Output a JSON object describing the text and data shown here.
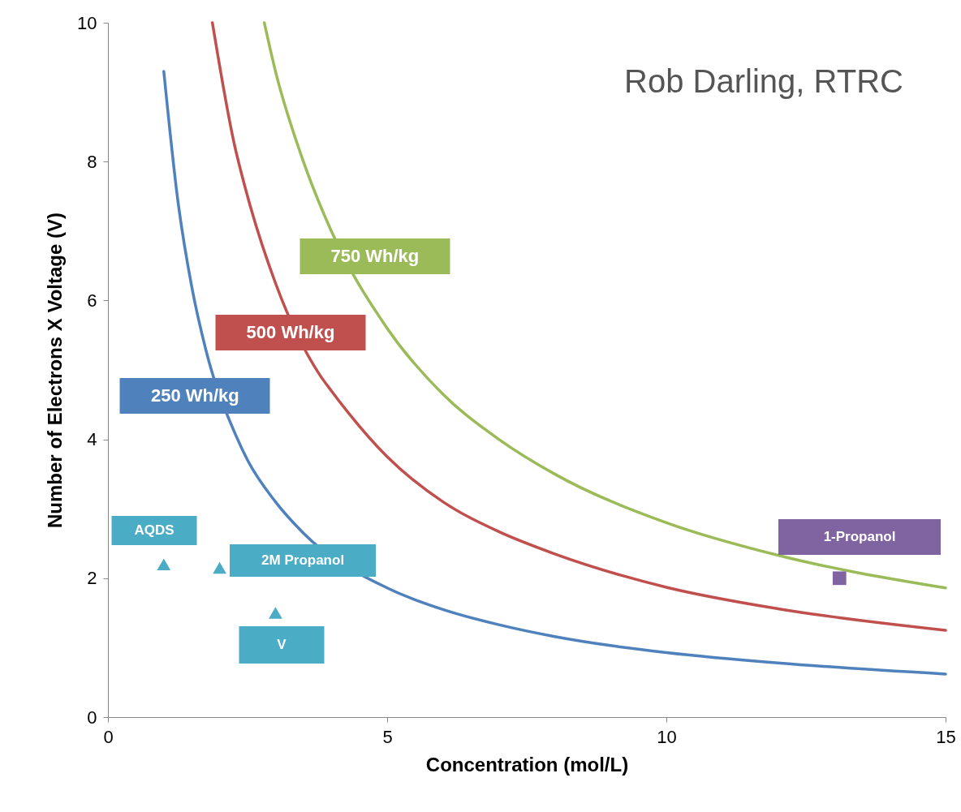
{
  "chart_data": {
    "type": "line",
    "xlabel": "Concentration (mol/L)",
    "ylabel": "Number of Electrons X Voltage (V)",
    "xlim": [
      0,
      15
    ],
    "ylim": [
      0,
      10
    ],
    "xticks": [
      0,
      5,
      10,
      15
    ],
    "yticks": [
      0,
      2,
      4,
      6,
      8,
      10
    ],
    "grid": false,
    "marker": "none",
    "line_style": "solid",
    "annotations": [
      "Rob Darling, RTRC"
    ],
    "series": [
      {
        "name": "250 Wh/kg",
        "color": "#4f81bd",
        "x": [
          1,
          1.25,
          1.5,
          1.75,
          2.3,
          2.5,
          3,
          3.5,
          5,
          6,
          7,
          8,
          9,
          10,
          12,
          15
        ],
        "values": [
          9.3,
          7.45,
          6.2,
          5.3,
          4.04,
          3.7,
          3.1,
          2.65,
          1.86,
          1.55,
          1.33,
          1.16,
          1.03,
          0.93,
          0.78,
          0.62
        ]
      },
      {
        "name": "500 Wh/kg",
        "color": "#c0504d",
        "x": [
          1.87,
          2.25,
          2.5,
          3,
          3.8,
          4,
          5,
          6,
          7,
          8,
          10,
          12,
          15
        ],
        "values": [
          10,
          8.3,
          7.5,
          6.25,
          4.92,
          4.7,
          3.75,
          3.1,
          2.67,
          2.35,
          1.87,
          1.56,
          1.25
        ]
      },
      {
        "name": "750 Wh/kg",
        "color": "#9bbb59",
        "x": [
          2.8,
          3,
          3.5,
          4,
          5,
          6,
          7,
          8,
          10,
          12,
          15
        ],
        "values": [
          10,
          9.3,
          8,
          7,
          5.6,
          4.65,
          4,
          3.5,
          2.8,
          2.33,
          1.86
        ]
      },
      {
        "name": "AQDS",
        "type": "scatter",
        "marker": "triangle",
        "color": "#4bacc6",
        "x": [
          1
        ],
        "values": [
          2.2
        ]
      },
      {
        "name": "2M Propanol",
        "type": "scatter",
        "marker": "triangle",
        "color": "#4bacc6",
        "x": [
          2
        ],
        "values": [
          2.15
        ]
      },
      {
        "name": "V",
        "type": "scatter",
        "marker": "triangle",
        "color": "#4bacc6",
        "x": [
          3
        ],
        "values": [
          1.5
        ]
      },
      {
        "name": "1-Propanol",
        "type": "scatter",
        "marker": "square",
        "color": "#8064a2",
        "x": [
          13.1
        ],
        "values": [
          2.0
        ]
      }
    ]
  }
}
